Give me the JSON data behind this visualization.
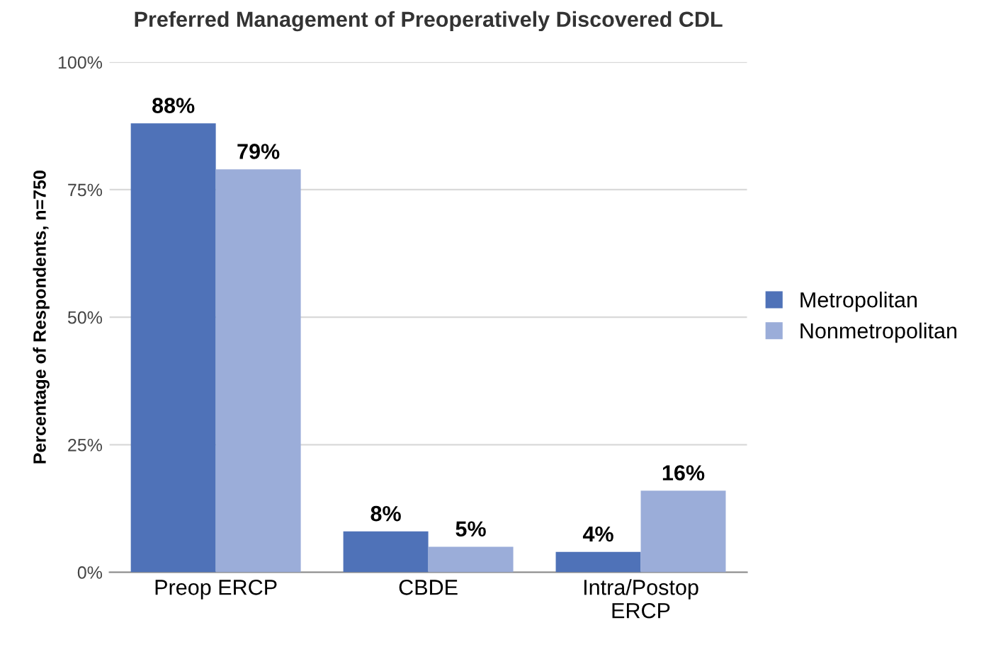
{
  "chart_data": {
    "type": "bar",
    "title": "Preferred Management of Preoperatively Discovered CDL",
    "ylabel": "Percentage of Respondents, n=750",
    "categories": [
      "Preop ERCP",
      "CBDE",
      "Intra/Postop\nERCP"
    ],
    "series": [
      {
        "name": "Metropolitan",
        "color": "#4f72b8",
        "values": [
          88,
          8,
          4
        ],
        "value_labels": [
          "88%",
          "8%",
          "4%"
        ]
      },
      {
        "name": "Nonmetropolitan",
        "color": "#9badd9",
        "values": [
          79,
          5,
          16
        ],
        "value_labels": [
          "79%",
          "5%",
          "16%"
        ]
      }
    ],
    "ylim": [
      0,
      100
    ],
    "yticks": [
      {
        "value": 0,
        "label": "0%"
      },
      {
        "value": 25,
        "label": "25%"
      },
      {
        "value": 50,
        "label": "50%"
      },
      {
        "value": 75,
        "label": "75%"
      },
      {
        "value": 100,
        "label": "100%"
      }
    ],
    "grid": "y",
    "legend": "right"
  }
}
